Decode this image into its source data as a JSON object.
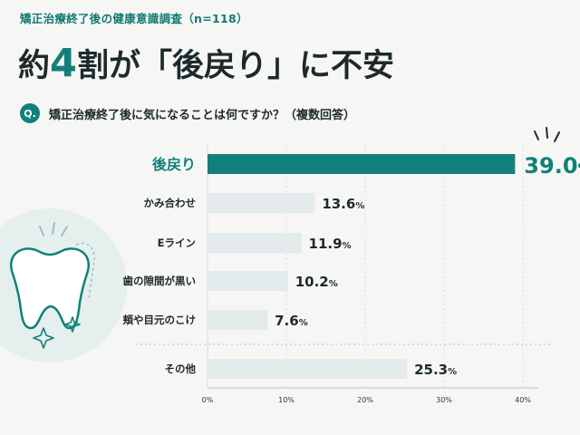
{
  "header": {
    "survey_title": "矯正治療終了後の健康意識調査（n=118）",
    "headline_pre": "約",
    "headline_num": "4",
    "headline_post": "割が「後戻り」に不安",
    "question_badge": "Q.",
    "question": "矯正治療終了後に気になることは何ですか？（複数回答）"
  },
  "colors": {
    "accent": "#11807a",
    "bar_default": "#e4ebec",
    "background": "#f6f6f4"
  },
  "icons": [
    "tooth-icon",
    "sparkle-icon"
  ],
  "chart_data": {
    "type": "bar",
    "orientation": "horizontal",
    "title": "",
    "xlabel": "",
    "ylabel": "",
    "categories": [
      "後戻り",
      "かみ合わせ",
      "Eライン",
      "歯の隙間が黒い",
      "頬や目元のこけ",
      "その他"
    ],
    "values": [
      39.0,
      13.6,
      11.9,
      10.2,
      7.6,
      25.3
    ],
    "value_labels": [
      "39.0",
      "13.6",
      "11.9",
      "10.2",
      "7.6",
      "25.3"
    ],
    "unit": "%",
    "highlight_index": 0,
    "xlim": [
      0,
      42
    ],
    "ticks": [
      0,
      10,
      20,
      30,
      40
    ],
    "tick_labels": [
      "0%",
      "10%",
      "20%",
      "30%",
      "40%"
    ],
    "grid": true,
    "legend": "none"
  }
}
